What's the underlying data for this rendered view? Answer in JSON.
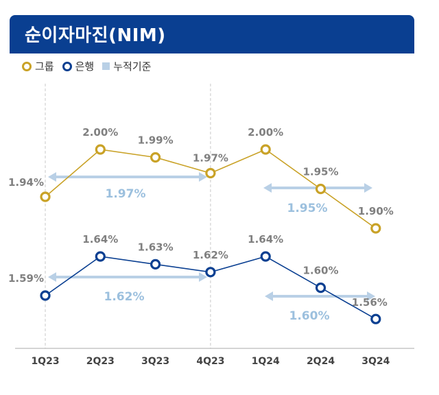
{
  "header": {
    "title": "순이자마진(NIM)"
  },
  "legend": [
    {
      "label": "그룹",
      "color": "#c9a227"
    },
    {
      "label": "은행",
      "color": "#0a3f91"
    },
    {
      "label": "누적기준",
      "color": "#b9d0e6"
    }
  ],
  "chart_data": {
    "type": "line",
    "title": "순이자마진(NIM)",
    "categories": [
      "1Q23",
      "2Q23",
      "3Q23",
      "4Q23",
      "1Q24",
      "2Q24",
      "3Q24"
    ],
    "series": [
      {
        "name": "그룹",
        "values": [
          1.94,
          2.0,
          1.99,
          1.97,
          2.0,
          1.95,
          1.9
        ],
        "labels": [
          "1.94%",
          "2.00%",
          "1.99%",
          "1.97%",
          "2.00%",
          "1.95%",
          "1.90%"
        ],
        "color": "#c9a227"
      },
      {
        "name": "은행",
        "values": [
          1.59,
          1.64,
          1.63,
          1.62,
          1.64,
          1.6,
          1.56
        ],
        "labels": [
          "1.59%",
          "1.64%",
          "1.63%",
          "1.62%",
          "1.64%",
          "1.60%",
          "1.56%"
        ],
        "color": "#0a3f91"
      }
    ],
    "cumulative": [
      {
        "series": "그룹",
        "label": "1.97%",
        "from": "1Q23",
        "to": "4Q23"
      },
      {
        "series": "그룹",
        "label": "1.95%",
        "from": "1Q24",
        "to": "3Q24"
      },
      {
        "series": "은행",
        "label": "1.62%",
        "from": "1Q23",
        "to": "4Q23"
      },
      {
        "series": "은행",
        "label": "1.60%",
        "from": "1Q24",
        "to": "3Q24"
      }
    ],
    "cumulative_color": "#b9d0e6",
    "xlabel": "",
    "ylabel": ""
  }
}
